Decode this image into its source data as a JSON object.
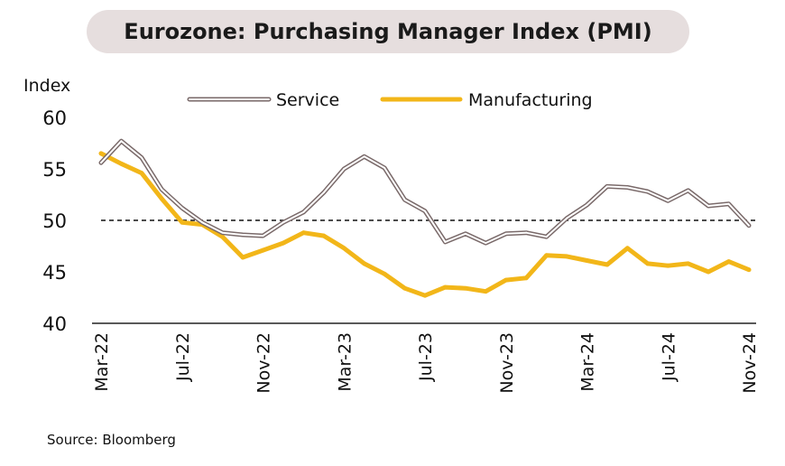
{
  "title": "Eurozone: Purchasing Manager Index (PMI)",
  "source": "Source: Bloomberg",
  "chart_data": {
    "type": "line",
    "title": "Eurozone: Purchasing Manager Index (PMI)",
    "ylabel": "Index",
    "xlabel": "",
    "ylim": [
      40,
      60
    ],
    "yticks": [
      40,
      45,
      50,
      55,
      60
    ],
    "reference_line": 50,
    "legend_position": "top",
    "x_tick_labels": [
      "Mar-22",
      "Jul-22",
      "Nov-22",
      "Mar-23",
      "Jul-23",
      "Nov-23",
      "Mar-24",
      "Jul-24",
      "Nov-24"
    ],
    "x": [
      "Mar-22",
      "Apr-22",
      "May-22",
      "Jun-22",
      "Jul-22",
      "Aug-22",
      "Sep-22",
      "Oct-22",
      "Nov-22",
      "Dec-22",
      "Jan-23",
      "Feb-23",
      "Mar-23",
      "Apr-23",
      "May-23",
      "Jun-23",
      "Jul-23",
      "Aug-23",
      "Sep-23",
      "Oct-23",
      "Nov-23",
      "Dec-23",
      "Jan-24",
      "Feb-24",
      "Mar-24",
      "Apr-24",
      "May-24",
      "Jun-24",
      "Jul-24",
      "Aug-24",
      "Sep-24",
      "Oct-24",
      "Nov-24"
    ],
    "series": [
      {
        "name": "Service",
        "color": "#7a6a6a",
        "values": [
          55.6,
          57.7,
          56.1,
          53.0,
          51.2,
          49.8,
          48.8,
          48.6,
          48.5,
          49.8,
          50.8,
          52.7,
          55.0,
          56.2,
          55.1,
          52.0,
          50.9,
          47.9,
          48.7,
          47.8,
          48.7,
          48.8,
          48.4,
          50.2,
          51.5,
          53.3,
          53.2,
          52.8,
          51.9,
          52.9,
          51.4,
          51.6,
          49.5
        ]
      },
      {
        "name": "Manufacturing",
        "color": "#f2b619",
        "values": [
          56.5,
          55.5,
          54.6,
          52.1,
          49.8,
          49.6,
          48.4,
          46.4,
          47.1,
          47.8,
          48.8,
          48.5,
          47.3,
          45.8,
          44.8,
          43.4,
          42.7,
          43.5,
          43.4,
          43.1,
          44.2,
          44.4,
          46.6,
          46.5,
          46.1,
          45.7,
          47.3,
          45.8,
          45.6,
          45.8,
          45.0,
          46.0,
          45.2
        ]
      }
    ]
  }
}
